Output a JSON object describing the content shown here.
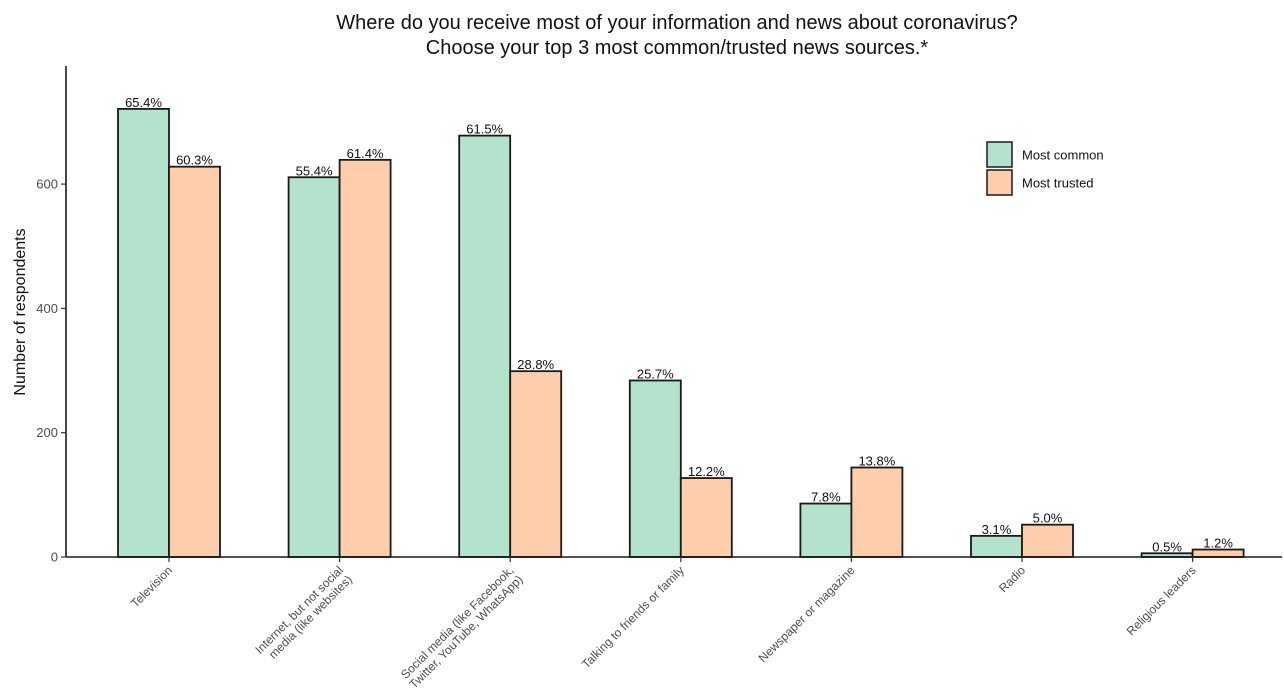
{
  "chart_data": {
    "type": "bar",
    "title": "Where do you receive most of your information and news about coronavirus?",
    "subtitle": "Choose your top 3 most common/trusted news sources.*",
    "xlabel": "",
    "ylabel": "Number of respondents",
    "ylim": [
      0,
      790
    ],
    "yticks": [
      0,
      200,
      400,
      600
    ],
    "grid": false,
    "legend_position": "top-right",
    "categories": [
      [
        "Television"
      ],
      [
        "Internet, but not social",
        "media (like websites)"
      ],
      [
        "Social media (like Facebook,",
        "Twitter, YouTube, WhatsApp)"
      ],
      [
        "Talking to friends or family"
      ],
      [
        "Newspaper or magazine"
      ],
      [
        "Radio"
      ],
      [
        "Religious leaders"
      ]
    ],
    "series": [
      {
        "name": "Most common",
        "color": "#b3e2cd",
        "values": [
          721,
          611,
          678,
          284,
          86,
          34,
          6
        ],
        "labels": [
          "65.4%",
          "55.4%",
          "61.5%",
          "25.7%",
          "7.8%",
          "3.1%",
          "0.5%"
        ]
      },
      {
        "name": "Most trusted",
        "color": "#fdcdac",
        "values": [
          628,
          639,
          299,
          127,
          144,
          52,
          12
        ],
        "labels": [
          "60.3%",
          "61.4%",
          "28.8%",
          "12.2%",
          "13.8%",
          "5.0%",
          "1.2%"
        ]
      }
    ]
  }
}
